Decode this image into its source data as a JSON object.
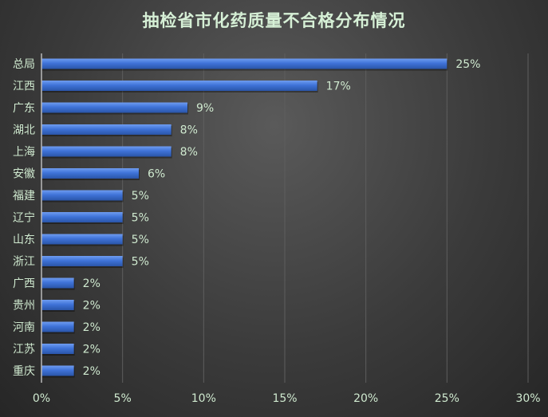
{
  "chart_data": {
    "type": "bar",
    "orientation": "horizontal",
    "title": "抽检省市化药质量不合格分布情况",
    "xlabel": "",
    "ylabel": "",
    "categories": [
      "总局",
      "江西",
      "广东",
      "湖北",
      "上海",
      "安徽",
      "福建",
      "辽宁",
      "山东",
      "浙江",
      "广西",
      "贵州",
      "河南",
      "江苏",
      "重庆"
    ],
    "values": [
      25,
      17,
      9,
      8,
      8,
      6,
      5,
      5,
      5,
      5,
      2,
      2,
      2,
      2,
      2
    ],
    "value_labels": [
      "25%",
      "17%",
      "9%",
      "8%",
      "8%",
      "6%",
      "5%",
      "5%",
      "5%",
      "5%",
      "2%",
      "2%",
      "2%",
      "2%",
      "2%"
    ],
    "xlim": [
      0,
      30
    ],
    "x_ticks": [
      0,
      5,
      10,
      15,
      20,
      25,
      30
    ],
    "x_tick_labels": [
      "0%",
      "5%",
      "10%",
      "15%",
      "20%",
      "25%",
      "30%"
    ],
    "grid": "vertical",
    "legend": "none",
    "colors": {
      "bar": "#3f73d8",
      "text": "#cfe9cf",
      "title": "#d6f0d6",
      "grid": "#5e5e5e",
      "axis": "#b9b9b9"
    }
  }
}
